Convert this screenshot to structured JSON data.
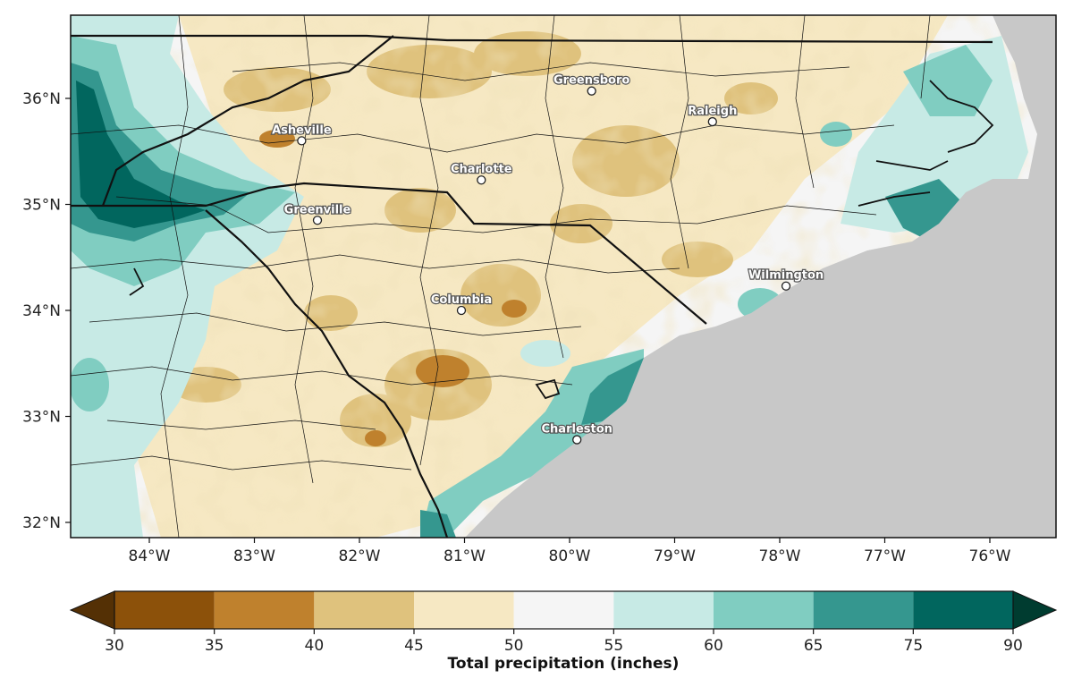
{
  "map": {
    "lon_ticks": [
      "84°W",
      "83°W",
      "82°W",
      "81°W",
      "80°W",
      "79°W",
      "78°W",
      "77°W",
      "76°W"
    ],
    "lat_ticks": [
      "36°N",
      "35°N",
      "34°N",
      "33°N",
      "32°N"
    ],
    "ocean_color": "#c8c8c8",
    "cities": [
      {
        "name": "Greensboro",
        "lon": -79.79,
        "lat": 36.07
      },
      {
        "name": "Raleigh",
        "lon": -78.64,
        "lat": 35.78
      },
      {
        "name": "Asheville",
        "lon": -82.55,
        "lat": 35.6
      },
      {
        "name": "Charlotte",
        "lon": -80.84,
        "lat": 35.23
      },
      {
        "name": "Greenville",
        "lon": -82.4,
        "lat": 34.85
      },
      {
        "name": "Wilmington",
        "lon": -77.94,
        "lat": 34.23
      },
      {
        "name": "Columbia",
        "lon": -81.03,
        "lat": 34.0
      },
      {
        "name": "Charleston",
        "lon": -79.93,
        "lat": 32.78
      }
    ]
  },
  "colorbar": {
    "title": "Total precipitation (inches)",
    "bounds": [
      "30",
      "35",
      "40",
      "45",
      "50",
      "55",
      "60",
      "65",
      "75",
      "90"
    ],
    "colors": [
      "#543005",
      "#8c510a",
      "#bf812d",
      "#dfc27d",
      "#f6e8c3",
      "#f5f5f5",
      "#c7eae5",
      "#80cdc1",
      "#35978f",
      "#01665e",
      "#003c30"
    ]
  }
}
